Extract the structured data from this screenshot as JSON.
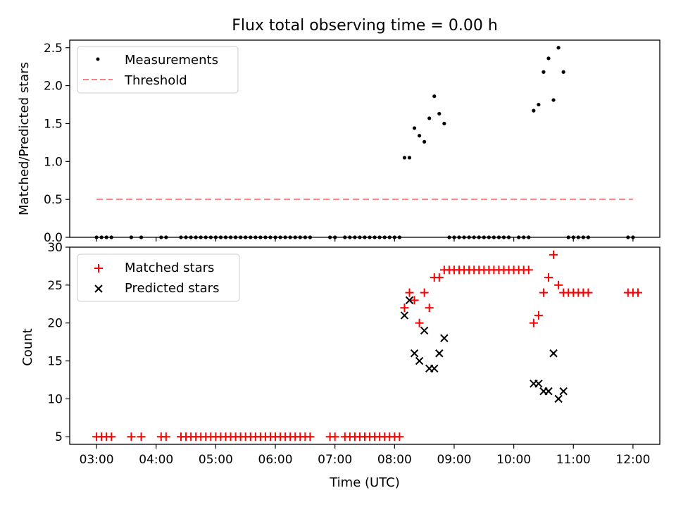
{
  "figure": {
    "title": "Flux total observing time = 0.00 h"
  },
  "colors": {
    "measurements": "#000000",
    "threshold": "#ff8080",
    "matched": "#ff0000",
    "predicted": "#000000"
  },
  "chart_data": [
    {
      "type": "scatter",
      "ylabel": "Matched/Predicted stars",
      "ylim": [
        0,
        2.6
      ],
      "xlim": [
        "02:33",
        "12:27"
      ],
      "yticks": [
        0.0,
        0.5,
        1.0,
        1.5,
        2.0,
        2.5
      ],
      "ytick_labels": [
        "0.0",
        "0.5",
        "1.0",
        "1.5",
        "2.0",
        "2.5"
      ],
      "legend_position": "top-left",
      "series": [
        {
          "name": "Measurements",
          "marker": "dot",
          "points": [
            [
              "03:00",
              0
            ],
            [
              "03:05",
              0
            ],
            [
              "03:10",
              0
            ],
            [
              "03:15",
              0
            ],
            [
              "03:35",
              0
            ],
            [
              "03:45",
              0
            ],
            [
              "04:05",
              0
            ],
            [
              "04:10",
              0
            ],
            [
              "04:25",
              0
            ],
            [
              "04:30",
              0
            ],
            [
              "04:35",
              0
            ],
            [
              "04:40",
              0
            ],
            [
              "04:45",
              0
            ],
            [
              "04:50",
              0
            ],
            [
              "04:55",
              0
            ],
            [
              "05:00",
              0
            ],
            [
              "05:05",
              0
            ],
            [
              "05:10",
              0
            ],
            [
              "05:15",
              0
            ],
            [
              "05:20",
              0
            ],
            [
              "05:25",
              0
            ],
            [
              "05:30",
              0
            ],
            [
              "05:35",
              0
            ],
            [
              "05:40",
              0
            ],
            [
              "05:45",
              0
            ],
            [
              "05:50",
              0
            ],
            [
              "05:55",
              0
            ],
            [
              "06:00",
              0
            ],
            [
              "06:05",
              0
            ],
            [
              "06:10",
              0
            ],
            [
              "06:15",
              0
            ],
            [
              "06:20",
              0
            ],
            [
              "06:25",
              0
            ],
            [
              "06:30",
              0
            ],
            [
              "06:35",
              0
            ],
            [
              "06:55",
              0
            ],
            [
              "07:00",
              0
            ],
            [
              "07:10",
              0
            ],
            [
              "07:15",
              0
            ],
            [
              "07:20",
              0
            ],
            [
              "07:25",
              0
            ],
            [
              "07:30",
              0
            ],
            [
              "07:35",
              0
            ],
            [
              "07:40",
              0
            ],
            [
              "07:45",
              0
            ],
            [
              "07:50",
              0
            ],
            [
              "07:55",
              0
            ],
            [
              "08:00",
              0
            ],
            [
              "08:05",
              0.0
            ],
            [
              "08:10",
              1.05
            ],
            [
              "08:15",
              1.05
            ],
            [
              "08:20",
              1.44
            ],
            [
              "08:25",
              1.34
            ],
            [
              "08:30",
              1.26
            ],
            [
              "08:35",
              1.57
            ],
            [
              "08:40",
              1.86
            ],
            [
              "08:45",
              1.63
            ],
            [
              "08:50",
              1.5
            ],
            [
              "08:55",
              0
            ],
            [
              "09:00",
              0
            ],
            [
              "09:05",
              0
            ],
            [
              "09:10",
              0
            ],
            [
              "09:15",
              0
            ],
            [
              "09:20",
              0
            ],
            [
              "09:25",
              0
            ],
            [
              "09:30",
              0
            ],
            [
              "09:35",
              0
            ],
            [
              "09:40",
              0
            ],
            [
              "09:45",
              0
            ],
            [
              "09:50",
              0
            ],
            [
              "09:55",
              0
            ],
            [
              "10:05",
              0
            ],
            [
              "10:10",
              0
            ],
            [
              "10:15",
              0
            ],
            [
              "10:20",
              1.67
            ],
            [
              "10:25",
              1.75
            ],
            [
              "10:30",
              2.18
            ],
            [
              "10:35",
              2.36
            ],
            [
              "10:40",
              1.81
            ],
            [
              "10:45",
              2.5
            ],
            [
              "10:50",
              2.18
            ],
            [
              "10:55",
              0
            ],
            [
              "11:00",
              0
            ],
            [
              "11:05",
              0
            ],
            [
              "11:10",
              0
            ],
            [
              "11:15",
              0
            ],
            [
              "11:55",
              0
            ],
            [
              "12:00",
              0
            ]
          ]
        },
        {
          "name": "Threshold",
          "marker": "dashed-line",
          "points": [
            [
              "03:00",
              0.5
            ],
            [
              "12:00",
              0.5
            ]
          ]
        }
      ]
    },
    {
      "type": "scatter",
      "xlabel": "Time (UTC)",
      "ylabel": "Count",
      "ylim": [
        4,
        30
      ],
      "xlim": [
        "02:33",
        "12:27"
      ],
      "xticks": [
        "03:00",
        "04:00",
        "05:00",
        "06:00",
        "07:00",
        "08:00",
        "09:00",
        "10:00",
        "11:00",
        "12:00"
      ],
      "yticks": [
        5,
        10,
        15,
        20,
        25,
        30
      ],
      "ytick_labels": [
        "5",
        "10",
        "15",
        "20",
        "25",
        "30"
      ],
      "legend_position": "top-left",
      "series": [
        {
          "name": "Matched stars",
          "marker": "plus",
          "points": [
            [
              "03:00",
              5
            ],
            [
              "03:05",
              5
            ],
            [
              "03:10",
              5
            ],
            [
              "03:15",
              5
            ],
            [
              "03:35",
              5
            ],
            [
              "03:45",
              5
            ],
            [
              "04:05",
              5
            ],
            [
              "04:10",
              5
            ],
            [
              "04:25",
              5
            ],
            [
              "04:30",
              5
            ],
            [
              "04:35",
              5
            ],
            [
              "04:40",
              5
            ],
            [
              "04:45",
              5
            ],
            [
              "04:50",
              5
            ],
            [
              "04:55",
              5
            ],
            [
              "05:00",
              5
            ],
            [
              "05:05",
              5
            ],
            [
              "05:10",
              5
            ],
            [
              "05:15",
              5
            ],
            [
              "05:20",
              5
            ],
            [
              "05:25",
              5
            ],
            [
              "05:30",
              5
            ],
            [
              "05:35",
              5
            ],
            [
              "05:40",
              5
            ],
            [
              "05:45",
              5
            ],
            [
              "05:50",
              5
            ],
            [
              "05:55",
              5
            ],
            [
              "06:00",
              5
            ],
            [
              "06:05",
              5
            ],
            [
              "06:10",
              5
            ],
            [
              "06:15",
              5
            ],
            [
              "06:20",
              5
            ],
            [
              "06:25",
              5
            ],
            [
              "06:30",
              5
            ],
            [
              "06:35",
              5
            ],
            [
              "06:55",
              5
            ],
            [
              "07:00",
              5
            ],
            [
              "07:10",
              5
            ],
            [
              "07:15",
              5
            ],
            [
              "07:20",
              5
            ],
            [
              "07:25",
              5
            ],
            [
              "07:30",
              5
            ],
            [
              "07:35",
              5
            ],
            [
              "07:40",
              5
            ],
            [
              "07:45",
              5
            ],
            [
              "07:50",
              5
            ],
            [
              "07:55",
              5
            ],
            [
              "08:00",
              5
            ],
            [
              "08:05",
              5
            ],
            [
              "08:10",
              22
            ],
            [
              "08:15",
              24
            ],
            [
              "08:20",
              23
            ],
            [
              "08:25",
              20
            ],
            [
              "08:30",
              24
            ],
            [
              "08:35",
              22
            ],
            [
              "08:40",
              26
            ],
            [
              "08:45",
              26
            ],
            [
              "08:50",
              27
            ],
            [
              "08:55",
              27
            ],
            [
              "09:00",
              27
            ],
            [
              "09:05",
              27
            ],
            [
              "09:10",
              27
            ],
            [
              "09:15",
              27
            ],
            [
              "09:20",
              27
            ],
            [
              "09:25",
              27
            ],
            [
              "09:30",
              27
            ],
            [
              "09:35",
              27
            ],
            [
              "09:40",
              27
            ],
            [
              "09:45",
              27
            ],
            [
              "09:50",
              27
            ],
            [
              "09:55",
              27
            ],
            [
              "10:00",
              27
            ],
            [
              "10:05",
              27
            ],
            [
              "10:10",
              27
            ],
            [
              "10:15",
              27
            ],
            [
              "10:20",
              20
            ],
            [
              "10:25",
              21
            ],
            [
              "10:30",
              24
            ],
            [
              "10:35",
              26
            ],
            [
              "10:40",
              29
            ],
            [
              "10:45",
              25
            ],
            [
              "10:50",
              24
            ],
            [
              "10:55",
              24
            ],
            [
              "11:00",
              24
            ],
            [
              "11:05",
              24
            ],
            [
              "11:10",
              24
            ],
            [
              "11:15",
              24
            ],
            [
              "11:55",
              24
            ],
            [
              "12:00",
              24
            ],
            [
              "12:05",
              24
            ]
          ]
        },
        {
          "name": "Predicted stars",
          "marker": "x",
          "points": [
            [
              "08:10",
              21
            ],
            [
              "08:15",
              23
            ],
            [
              "08:20",
              16
            ],
            [
              "08:25",
              15
            ],
            [
              "08:30",
              19
            ],
            [
              "08:35",
              14
            ],
            [
              "08:40",
              14
            ],
            [
              "08:45",
              16
            ],
            [
              "08:50",
              18
            ],
            [
              "10:20",
              12
            ],
            [
              "10:25",
              12
            ],
            [
              "10:30",
              11
            ],
            [
              "10:35",
              11
            ],
            [
              "10:40",
              16
            ],
            [
              "10:45",
              10
            ],
            [
              "10:50",
              11
            ]
          ]
        }
      ]
    }
  ]
}
